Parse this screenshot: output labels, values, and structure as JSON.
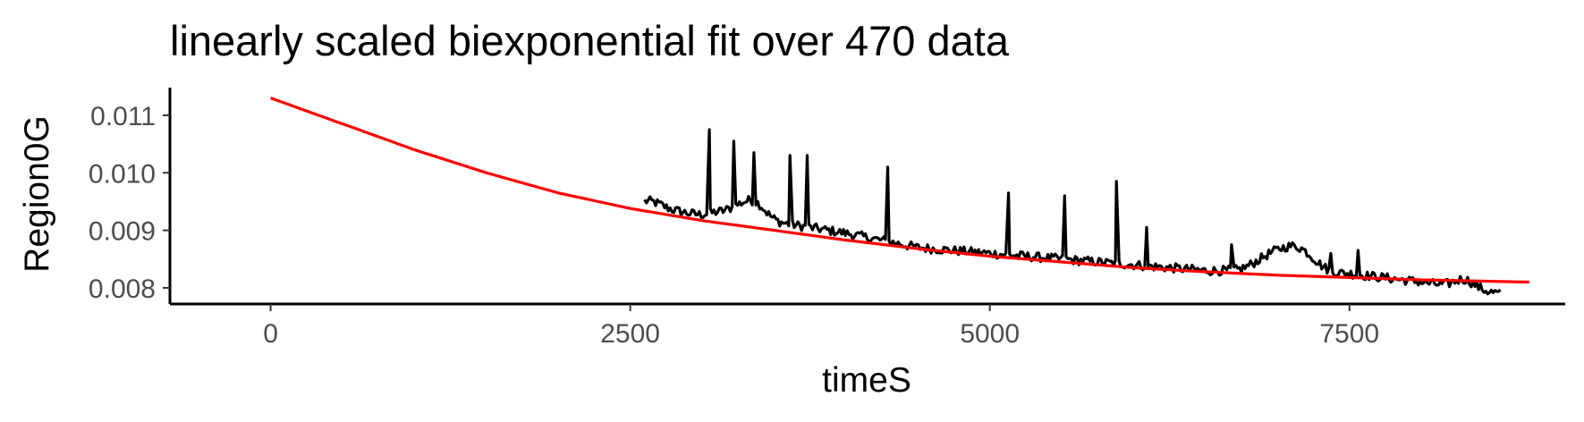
{
  "chart_data": {
    "type": "line",
    "title": "linearly scaled biexponential fit over 470 data",
    "xlabel": "timeS",
    "ylabel": "Region0G",
    "xlim": [
      -700,
      9000
    ],
    "ylim": [
      0.00772,
      0.01148
    ],
    "x_ticks": [
      0,
      2500,
      5000,
      7500
    ],
    "x_tick_labels": [
      "0",
      "2500",
      "5000",
      "7500"
    ],
    "y_ticks": [
      0.008,
      0.009,
      0.01,
      0.011
    ],
    "y_tick_labels": [
      "0.008",
      "0.009",
      "0.010",
      "0.011"
    ],
    "grid": false,
    "legend": "none",
    "series": [
      {
        "role": "observed",
        "color": "#000000",
        "x_start": 2600,
        "x_end": 8550,
        "points": 470,
        "trend_points": [
          [
            2600,
            0.00945
          ],
          [
            3000,
            0.00925
          ],
          [
            3500,
            0.00915
          ],
          [
            4000,
            0.00895
          ],
          [
            4500,
            0.0087
          ],
          [
            5000,
            0.0086
          ],
          [
            5500,
            0.0085
          ],
          [
            6000,
            0.0084
          ],
          [
            6500,
            0.0083
          ],
          [
            7000,
            0.0083
          ],
          [
            7500,
            0.00825
          ],
          [
            8000,
            0.0081
          ],
          [
            8550,
            0.0079
          ]
        ],
        "bumps": [
          [
            2650,
            0.00955
          ],
          [
            3100,
            0.00935
          ],
          [
            3250,
            0.0095
          ],
          [
            3370,
            0.00965
          ],
          [
            6850,
            0.00845
          ],
          [
            6950,
            0.0086
          ],
          [
            7050,
            0.0087
          ],
          [
            7150,
            0.00875
          ],
          [
            7250,
            0.0085
          ],
          [
            8300,
            0.00825
          ]
        ],
        "spikes": [
          [
            3050,
            0.01075
          ],
          [
            3220,
            0.01055
          ],
          [
            3360,
            0.01035
          ],
          [
            3610,
            0.0103
          ],
          [
            3730,
            0.0103
          ],
          [
            4290,
            0.0101
          ],
          [
            5130,
            0.00965
          ],
          [
            5520,
            0.0096
          ],
          [
            5880,
            0.00985
          ],
          [
            6090,
            0.00905
          ],
          [
            6680,
            0.00875
          ],
          [
            7370,
            0.0086
          ],
          [
            7560,
            0.00865
          ]
        ]
      },
      {
        "role": "fit",
        "color": "#ff0000",
        "model": "biexponential",
        "x_start": 0,
        "x_end": 8750,
        "points": [
          [
            0,
            0.0113
          ],
          [
            500,
            0.01085
          ],
          [
            1000,
            0.0104
          ],
          [
            1500,
            0.01
          ],
          [
            2000,
            0.00965
          ],
          [
            2500,
            0.00938
          ],
          [
            3000,
            0.00917
          ],
          [
            3500,
            0.009
          ],
          [
            4000,
            0.00883
          ],
          [
            4500,
            0.00868
          ],
          [
            5000,
            0.00855
          ],
          [
            5500,
            0.00845
          ],
          [
            6000,
            0.00835
          ],
          [
            6500,
            0.00828
          ],
          [
            7000,
            0.00822
          ],
          [
            7500,
            0.00818
          ],
          [
            8000,
            0.00814
          ],
          [
            8750,
            0.0081
          ]
        ]
      }
    ]
  }
}
